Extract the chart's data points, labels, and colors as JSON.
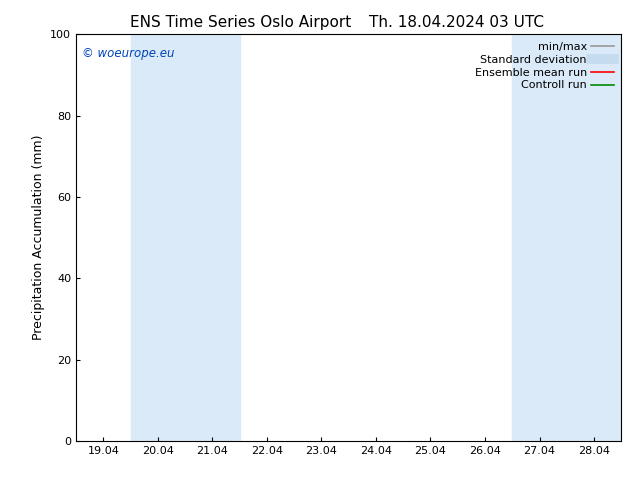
{
  "title_left": "ENS Time Series Oslo Airport",
  "title_right": "Th. 18.04.2024 03 UTC",
  "ylabel": "Precipitation Accumulation (mm)",
  "ylim": [
    0,
    100
  ],
  "yticks": [
    0,
    20,
    40,
    60,
    80,
    100
  ],
  "x_tick_labels": [
    "19.04",
    "20.04",
    "21.04",
    "22.04",
    "23.04",
    "24.04",
    "25.04",
    "26.04",
    "27.04",
    "28.04"
  ],
  "x_tick_positions": [
    0,
    1,
    2,
    3,
    4,
    5,
    6,
    7,
    8,
    9
  ],
  "xlim": [
    -0.5,
    9.5
  ],
  "watermark": "© woeurope.eu",
  "watermark_color": "#0044bb",
  "background_color": "#ffffff",
  "plot_bg_color": "#ffffff",
  "shaded_regions": [
    {
      "x_start": 0.5,
      "x_end": 2.5
    },
    {
      "x_start": 7.5,
      "x_end": 9.5
    }
  ],
  "shade_color": "#daeaf8",
  "legend_items": [
    {
      "label": "min/max",
      "color": "#999999",
      "lw": 1.2,
      "style": "solid"
    },
    {
      "label": "Standard deviation",
      "color": "#c5dcef",
      "lw": 7,
      "style": "solid"
    },
    {
      "label": "Ensemble mean run",
      "color": "#ff0000",
      "lw": 1.2,
      "style": "solid"
    },
    {
      "label": "Controll run",
      "color": "#008800",
      "lw": 1.2,
      "style": "solid"
    }
  ],
  "title_fontsize": 11,
  "axis_fontsize": 9,
  "tick_fontsize": 8,
  "legend_fontsize": 8
}
